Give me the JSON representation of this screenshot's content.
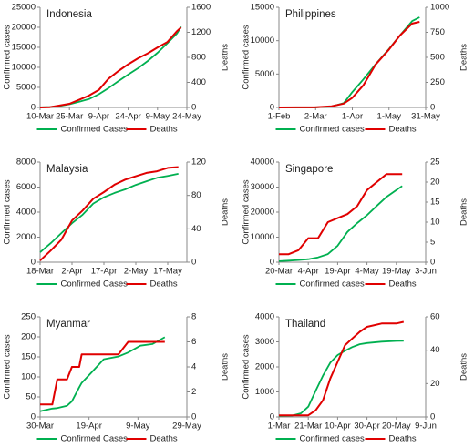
{
  "chart_data": [
    {
      "type": "line",
      "title": "Indonesia",
      "ylabel": "Confirmed cases",
      "y2label": "Deaths",
      "x": [
        "10-Mar",
        "15-Mar",
        "20-Mar",
        "25-Mar",
        "30-Mar",
        "4-Apr",
        "9-Apr",
        "14-Apr",
        "19-Apr",
        "24-Apr",
        "29-Apr",
        "4-May",
        "9-May",
        "14-May",
        "19-May",
        "21-May"
      ],
      "xlim": [
        "10-Mar",
        "24-May"
      ],
      "xticks": [
        "10-Mar",
        "25-Mar",
        "9-Apr",
        "24-Apr",
        "9-May",
        "24-May"
      ],
      "ylim": [
        0,
        25000
      ],
      "yticks": [
        0,
        5000,
        10000,
        15000,
        20000,
        25000
      ],
      "y2lim": [
        0,
        1600
      ],
      "y2ticks": [
        0,
        400,
        800,
        1200,
        1600
      ],
      "series": [
        {
          "name": "Confirmed Cases",
          "color": "#00b050",
          "values": [
            20,
            117,
            369,
            790,
            1414,
            2092,
            3293,
            4839,
            6575,
            8211,
            9771,
            11587,
            13645,
            16006,
            18496,
            20162
          ]
        },
        {
          "name": "Deaths",
          "color": "#e00000",
          "axis": "y2",
          "values": [
            0,
            5,
            32,
            58,
            122,
            191,
            280,
            459,
            582,
            689,
            784,
            864,
            959,
            1043,
            1221,
            1278
          ]
        }
      ]
    },
    {
      "type": "line",
      "title": "Philippines",
      "ylabel": "Confirmed cases",
      "y2label": "Deaths",
      "x": [
        "1-Feb",
        "15-Feb",
        "1-Mar",
        "15-Mar",
        "25-Mar",
        "1-Apr",
        "10-Apr",
        "20-Apr",
        "1-May",
        "10-May",
        "20-May",
        "26-May"
      ],
      "xlim": [
        "1-Feb",
        "31-May"
      ],
      "xticks": [
        "1-Feb",
        "2-Mar",
        "1-Apr",
        "1-May",
        "31-May"
      ],
      "ylim": [
        0,
        15000
      ],
      "yticks": [
        0,
        5000,
        10000,
        15000
      ],
      "y2lim": [
        0,
        1000
      ],
      "y2ticks": [
        0,
        250,
        500,
        750,
        1000
      ],
      "series": [
        {
          "name": "Confirmed cases",
          "color": "#00b050",
          "values": [
            1,
            3,
            3,
            140,
            636,
            2311,
            4195,
            6459,
            8772,
            10794,
            12942,
            13500
          ]
        },
        {
          "name": "Deaths",
          "color": "#e00000",
          "axis": "y2",
          "values": [
            0,
            1,
            1,
            12,
            38,
            96,
            221,
            428,
            579,
            719,
            837,
            855
          ]
        }
      ]
    },
    {
      "type": "line",
      "title": "Malaysia",
      "ylabel": "Confirmed cases",
      "y2label": "Deaths",
      "x": [
        "18-Mar",
        "23-Mar",
        "28-Mar",
        "2-Apr",
        "7-Apr",
        "12-Apr",
        "17-Apr",
        "22-Apr",
        "27-Apr",
        "2-May",
        "7-May",
        "12-May",
        "17-May",
        "22-May"
      ],
      "xlim": [
        "18-Mar",
        "26-May"
      ],
      "xticks": [
        "18-Mar",
        "2-Apr",
        "17-Apr",
        "2-May",
        "17-May"
      ],
      "ylim": [
        0,
        8000
      ],
      "yticks": [
        0,
        2000,
        4000,
        6000,
        8000
      ],
      "y2lim": [
        0,
        120
      ],
      "y2ticks": [
        0,
        40,
        80,
        120
      ],
      "series": [
        {
          "name": "Confirmed Cases",
          "color": "#00b050",
          "values": [
            790,
            1518,
            2320,
            3116,
            3793,
            4683,
            5182,
            5532,
            5820,
            6176,
            6467,
            6742,
            6894,
            7059
          ]
        },
        {
          "name": "Deaths",
          "color": "#e00000",
          "axis": "y2",
          "values": [
            2,
            14,
            27,
            50,
            62,
            76,
            84,
            93,
            99,
            103,
            107,
            109,
            113,
            114
          ]
        }
      ]
    },
    {
      "type": "line",
      "title": "Singapore",
      "ylabel": "Confirmed cases",
      "y2label": "Deaths",
      "x": [
        "20-Mar",
        "25-Mar",
        "30-Mar",
        "4-Apr",
        "9-Apr",
        "14-Apr",
        "19-Apr",
        "24-Apr",
        "29-Apr",
        "4-May",
        "9-May",
        "14-May",
        "19-May",
        "22-May"
      ],
      "xlim": [
        "20-Mar",
        "3-Jun"
      ],
      "xticks": [
        "20-Mar",
        "4-Apr",
        "19-Apr",
        "4-May",
        "19-May",
        "3-Jun"
      ],
      "ylim": [
        0,
        40000
      ],
      "yticks": [
        0,
        10000,
        20000,
        30000,
        40000
      ],
      "y2lim": [
        0,
        25
      ],
      "y2ticks": [
        0,
        5,
        10,
        15,
        20,
        25
      ],
      "series": [
        {
          "name": "Confirmed cases",
          "color": "#00b050",
          "values": [
            385,
            631,
            879,
            1189,
            1910,
            3252,
            6588,
            12075,
            15641,
            18778,
            22460,
            26098,
            28794,
            30426
          ]
        },
        {
          "name": "Deaths",
          "color": "#e00000",
          "axis": "y2",
          "values": [
            2,
            2,
            3,
            6,
            6,
            10,
            11,
            12,
            14,
            18,
            20,
            22,
            22,
            22
          ]
        }
      ]
    },
    {
      "type": "line",
      "title": "Myanmar",
      "ylabel": "Confirmed cases",
      "y2label": "Deaths",
      "x": [
        "30-Mar",
        "4-Apr",
        "6-Apr",
        "10-Apr",
        "12-Apr",
        "15-Apr",
        "16-Apr",
        "20-Apr",
        "25-Apr",
        "1-May",
        "5-May",
        "10-May",
        "15-May",
        "20-May"
      ],
      "xlim": [
        "30-Mar",
        "29-May"
      ],
      "xticks": [
        "30-Mar",
        "19-Apr",
        "9-May",
        "29-May"
      ],
      "ylim": [
        0,
        250
      ],
      "yticks": [
        0,
        50,
        100,
        150,
        200,
        250
      ],
      "y2lim": [
        0,
        8
      ],
      "y2ticks": [
        0,
        2,
        4,
        6,
        8
      ],
      "series": [
        {
          "name": "Confirmed Cases",
          "color": "#00b050",
          "values": [
            14,
            21,
            22,
            28,
            39,
            74,
            85,
            111,
            144,
            151,
            161,
            178,
            182,
            199
          ]
        },
        {
          "name": "Deaths",
          "color": "#e00000",
          "axis": "y2",
          "values": [
            1,
            1,
            3,
            3,
            4,
            4,
            5,
            5,
            5,
            5,
            6,
            6,
            6,
            6
          ]
        }
      ]
    },
    {
      "type": "line",
      "title": "Thailand",
      "ylabel": "Confirmed cases",
      "y2label": "Deaths",
      "x": [
        "1-Mar",
        "10-Mar",
        "16-Mar",
        "21-Mar",
        "26-Mar",
        "31-Mar",
        "5-Apr",
        "10-Apr",
        "15-Apr",
        "20-Apr",
        "25-Apr",
        "30-Apr",
        "10-May",
        "20-May",
        "25-May"
      ],
      "xlim": [
        "1-Mar",
        "9-Jun"
      ],
      "xticks": [
        "1-Mar",
        "21-Mar",
        "10-Apr",
        "30-Apr",
        "20-May",
        "9-Jun"
      ],
      "ylim": [
        0,
        4000
      ],
      "yticks": [
        0,
        1000,
        2000,
        3000,
        4000
      ],
      "y2lim": [
        0,
        60
      ],
      "y2ticks": [
        0,
        20,
        40,
        60
      ],
      "series": [
        {
          "name": "Confirmed cases",
          "color": "#00b050",
          "values": [
            42,
            53,
            147,
            411,
            1045,
            1651,
            2169,
            2473,
            2643,
            2792,
            2907,
            2954,
            3009,
            3037,
            3042
          ]
        },
        {
          "name": "Deaths",
          "color": "#e00000",
          "axis": "y2",
          "values": [
            1,
            1,
            1,
            1,
            4,
            10,
            23,
            33,
            43,
            47,
            51,
            54,
            56,
            56,
            57
          ]
        }
      ]
    }
  ]
}
